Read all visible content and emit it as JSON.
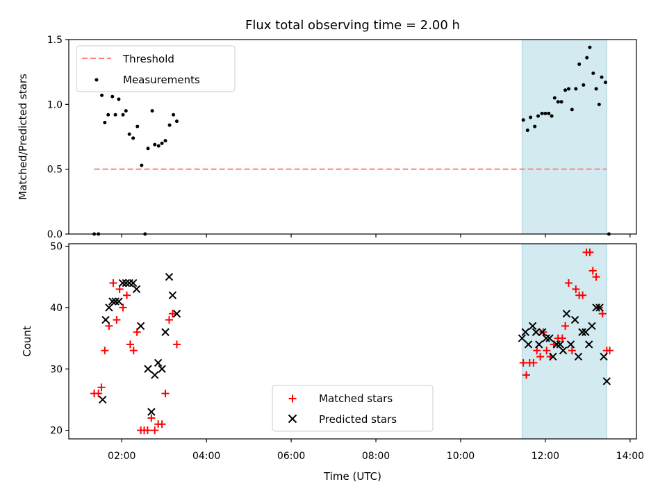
{
  "chart_data": [
    {
      "type": "scatter",
      "title": "Flux total observing time = 2.00 h",
      "xlabel": "",
      "ylabel": "Matched/Predicted stars",
      "xlim": [
        0.75,
        14.15
      ],
      "ylim": [
        0.0,
        1.5
      ],
      "yticks": [
        0.0,
        0.5,
        1.0,
        1.5
      ],
      "ytick_labels": [
        "0.0",
        "0.5",
        "1.0",
        "1.5"
      ],
      "xticks": [
        2,
        4,
        6,
        8,
        10,
        12,
        14
      ],
      "shaded_region": [
        11.45,
        13.45
      ],
      "shade_color": "#d3eaf1",
      "grid": false,
      "legend_position": "upper-left",
      "legend": [
        "Threshold",
        "Measurements"
      ],
      "threshold": {
        "label": "Threshold",
        "value": 0.5,
        "x": [
          1.35,
          13.45
        ],
        "color": "#ff7f7f"
      },
      "series": [
        {
          "name": "Measurements",
          "color": "#000000",
          "points": [
            [
              1.35,
              0.0
            ],
            [
              1.45,
              0.0
            ],
            [
              1.4,
              1.19
            ],
            [
              1.53,
              1.07
            ],
            [
              1.6,
              0.86
            ],
            [
              1.68,
              0.92
            ],
            [
              1.78,
              1.06
            ],
            [
              1.85,
              0.92
            ],
            [
              1.93,
              1.04
            ],
            [
              2.03,
              0.92
            ],
            [
              2.1,
              0.95
            ],
            [
              2.18,
              0.77
            ],
            [
              2.27,
              0.74
            ],
            [
              2.37,
              0.83
            ],
            [
              2.47,
              0.53
            ],
            [
              2.55,
              0.0
            ],
            [
              2.62,
              0.66
            ],
            [
              2.72,
              0.95
            ],
            [
              2.78,
              0.69
            ],
            [
              2.87,
              0.68
            ],
            [
              2.95,
              0.7
            ],
            [
              3.03,
              0.72
            ],
            [
              3.13,
              0.84
            ],
            [
              3.22,
              0.92
            ],
            [
              3.3,
              0.87
            ],
            [
              11.48,
              0.88
            ],
            [
              11.58,
              0.8
            ],
            [
              11.65,
              0.9
            ],
            [
              11.75,
              0.83
            ],
            [
              11.83,
              0.91
            ],
            [
              11.92,
              0.93
            ],
            [
              12.0,
              0.93
            ],
            [
              12.08,
              0.93
            ],
            [
              12.15,
              0.91
            ],
            [
              12.22,
              1.05
            ],
            [
              12.3,
              1.02
            ],
            [
              12.38,
              1.02
            ],
            [
              12.47,
              1.11
            ],
            [
              12.55,
              1.12
            ],
            [
              12.63,
              0.96
            ],
            [
              12.72,
              1.12
            ],
            [
              12.8,
              1.31
            ],
            [
              12.9,
              1.15
            ],
            [
              12.98,
              1.36
            ],
            [
              13.05,
              1.44
            ],
            [
              13.13,
              1.24
            ],
            [
              13.2,
              1.12
            ],
            [
              13.27,
              1.0
            ],
            [
              13.33,
              1.21
            ],
            [
              13.42,
              1.17
            ],
            [
              13.5,
              0.0
            ]
          ]
        }
      ]
    },
    {
      "type": "scatter",
      "title": "",
      "xlabel": "Time (UTC)",
      "ylabel": "Count",
      "xlim": [
        0.75,
        14.15
      ],
      "ylim": [
        18.6,
        50.4
      ],
      "yticks": [
        20,
        30,
        40,
        50
      ],
      "ytick_labels": [
        "20",
        "30",
        "40",
        "50"
      ],
      "xticks": [
        2,
        4,
        6,
        8,
        10,
        12,
        14
      ],
      "xtick_labels": [
        "02:00",
        "04:00",
        "06:00",
        "08:00",
        "10:00",
        "12:00",
        "14:00"
      ],
      "shaded_region": [
        11.45,
        13.45
      ],
      "shade_color": "#d3eaf1",
      "grid": false,
      "legend_position": "lower-center",
      "legend": [
        "Matched stars",
        "Predicted stars"
      ],
      "series": [
        {
          "name": "Matched stars",
          "marker": "plus",
          "color": "#ff0000",
          "points": [
            [
              1.35,
              26
            ],
            [
              1.45,
              26
            ],
            [
              1.52,
              27
            ],
            [
              1.6,
              33
            ],
            [
              1.7,
              37
            ],
            [
              1.8,
              44
            ],
            [
              1.88,
              38
            ],
            [
              1.95,
              43
            ],
            [
              2.03,
              40
            ],
            [
              2.12,
              42
            ],
            [
              2.2,
              34
            ],
            [
              2.28,
              33
            ],
            [
              2.36,
              36
            ],
            [
              2.45,
              20
            ],
            [
              2.53,
              20
            ],
            [
              2.61,
              20
            ],
            [
              2.7,
              22
            ],
            [
              2.78,
              20
            ],
            [
              2.86,
              21
            ],
            [
              2.95,
              21
            ],
            [
              3.03,
              26
            ],
            [
              3.12,
              38
            ],
            [
              3.2,
              39
            ],
            [
              3.3,
              34
            ],
            [
              11.48,
              31
            ],
            [
              11.55,
              29
            ],
            [
              11.63,
              31
            ],
            [
              11.72,
              31
            ],
            [
              11.8,
              33
            ],
            [
              11.88,
              32
            ],
            [
              11.95,
              36
            ],
            [
              12.03,
              33
            ],
            [
              12.12,
              32
            ],
            [
              12.2,
              34
            ],
            [
              12.3,
              35
            ],
            [
              12.4,
              35
            ],
            [
              12.47,
              37
            ],
            [
              12.55,
              44
            ],
            [
              12.63,
              33
            ],
            [
              12.72,
              43
            ],
            [
              12.8,
              42
            ],
            [
              12.88,
              42
            ],
            [
              12.97,
              49
            ],
            [
              13.05,
              49
            ],
            [
              13.12,
              46
            ],
            [
              13.2,
              45
            ],
            [
              13.27,
              40
            ],
            [
              13.35,
              39
            ],
            [
              13.45,
              33
            ],
            [
              13.52,
              33
            ]
          ]
        },
        {
          "name": "Predicted stars",
          "marker": "x",
          "color": "#000000",
          "points": [
            [
              1.55,
              25
            ],
            [
              1.62,
              38
            ],
            [
              1.7,
              40
            ],
            [
              1.78,
              41
            ],
            [
              1.85,
              41
            ],
            [
              1.93,
              41
            ],
            [
              2.02,
              44
            ],
            [
              2.1,
              44
            ],
            [
              2.18,
              44
            ],
            [
              2.27,
              44
            ],
            [
              2.35,
              43
            ],
            [
              2.45,
              37
            ],
            [
              2.62,
              30
            ],
            [
              2.7,
              23
            ],
            [
              2.78,
              29
            ],
            [
              2.86,
              31
            ],
            [
              2.95,
              30
            ],
            [
              3.03,
              36
            ],
            [
              3.12,
              45
            ],
            [
              3.2,
              42
            ],
            [
              3.3,
              39
            ],
            [
              11.45,
              35
            ],
            [
              11.53,
              36
            ],
            [
              11.6,
              34
            ],
            [
              11.7,
              37
            ],
            [
              11.78,
              36
            ],
            [
              11.85,
              34
            ],
            [
              11.93,
              36
            ],
            [
              12.02,
              35
            ],
            [
              12.1,
              35
            ],
            [
              12.18,
              32
            ],
            [
              12.27,
              34
            ],
            [
              12.35,
              34
            ],
            [
              12.42,
              33
            ],
            [
              12.5,
              39
            ],
            [
              12.6,
              34
            ],
            [
              12.7,
              38
            ],
            [
              12.78,
              32
            ],
            [
              12.87,
              36
            ],
            [
              12.95,
              36
            ],
            [
              13.03,
              34
            ],
            [
              13.1,
              37
            ],
            [
              13.2,
              40
            ],
            [
              13.28,
              40
            ],
            [
              13.38,
              32
            ],
            [
              13.45,
              28
            ]
          ]
        }
      ]
    }
  ]
}
